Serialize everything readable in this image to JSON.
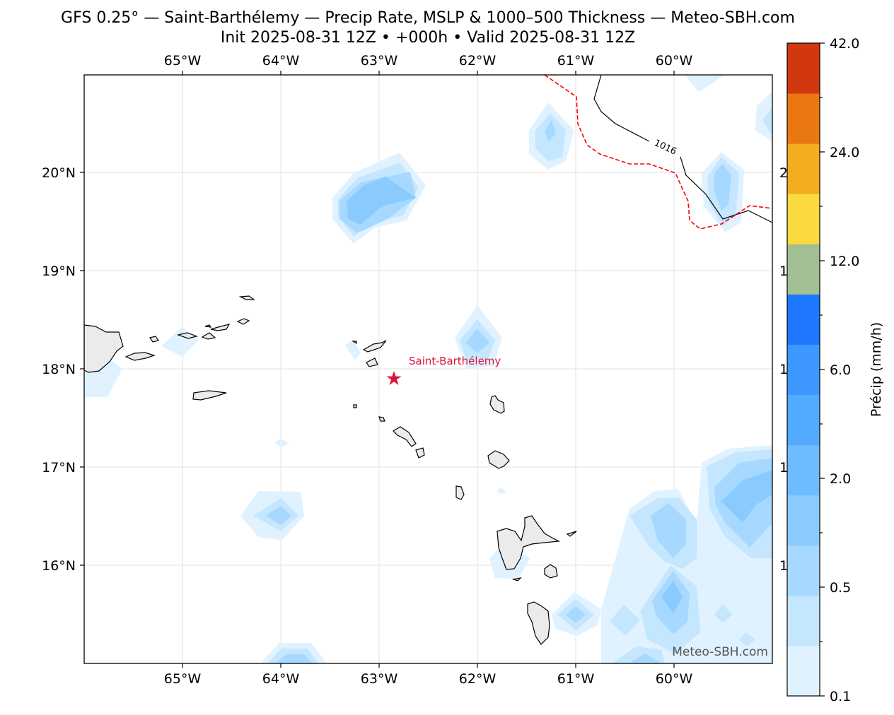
{
  "title": {
    "line1": "GFS 0.25° — Saint-Barthélemy — Precip Rate, MSLP & 1000–500 Thickness — Meteo-SBH.com",
    "line2": "Init 2025-08-31 12Z • +000h • Valid 2025-08-31 12Z"
  },
  "map": {
    "lon_range": [
      -66.0,
      -59.0
    ],
    "lat_range": [
      15.0,
      21.0
    ],
    "lon_ticks": [
      "65°W",
      "64°W",
      "63°W",
      "62°W",
      "61°W",
      "60°W"
    ],
    "lat_ticks": [
      "16°N",
      "17°N",
      "18°N",
      "19°N",
      "20°N"
    ],
    "right_partial_labels": [
      "2",
      "1",
      "1",
      "1",
      "1"
    ],
    "marker": {
      "label": "Saint-Barthélemy",
      "lon": -62.85,
      "lat": 17.9,
      "color": "#dc143c"
    },
    "isobar_label": "1016",
    "watermark": "Meteo-SBH.com",
    "land_color": "#ebebeb",
    "thickness_line_color": "#ff0000"
  },
  "colorbar": {
    "label": "Précip (mm/h)",
    "tick_labels": [
      "0.1",
      "0.5",
      "2.0",
      "6.0",
      "12.0",
      "24.0",
      "42.0"
    ],
    "colors": [
      "#e0f2ff",
      "#c4e6ff",
      "#a7d8ff",
      "#8acbff",
      "#6ebcff",
      "#53abff",
      "#3c97ff",
      "#1e78ff",
      "#a2bf94",
      "#fad941",
      "#f4ac21",
      "#e97811",
      "#d23810"
    ]
  }
}
